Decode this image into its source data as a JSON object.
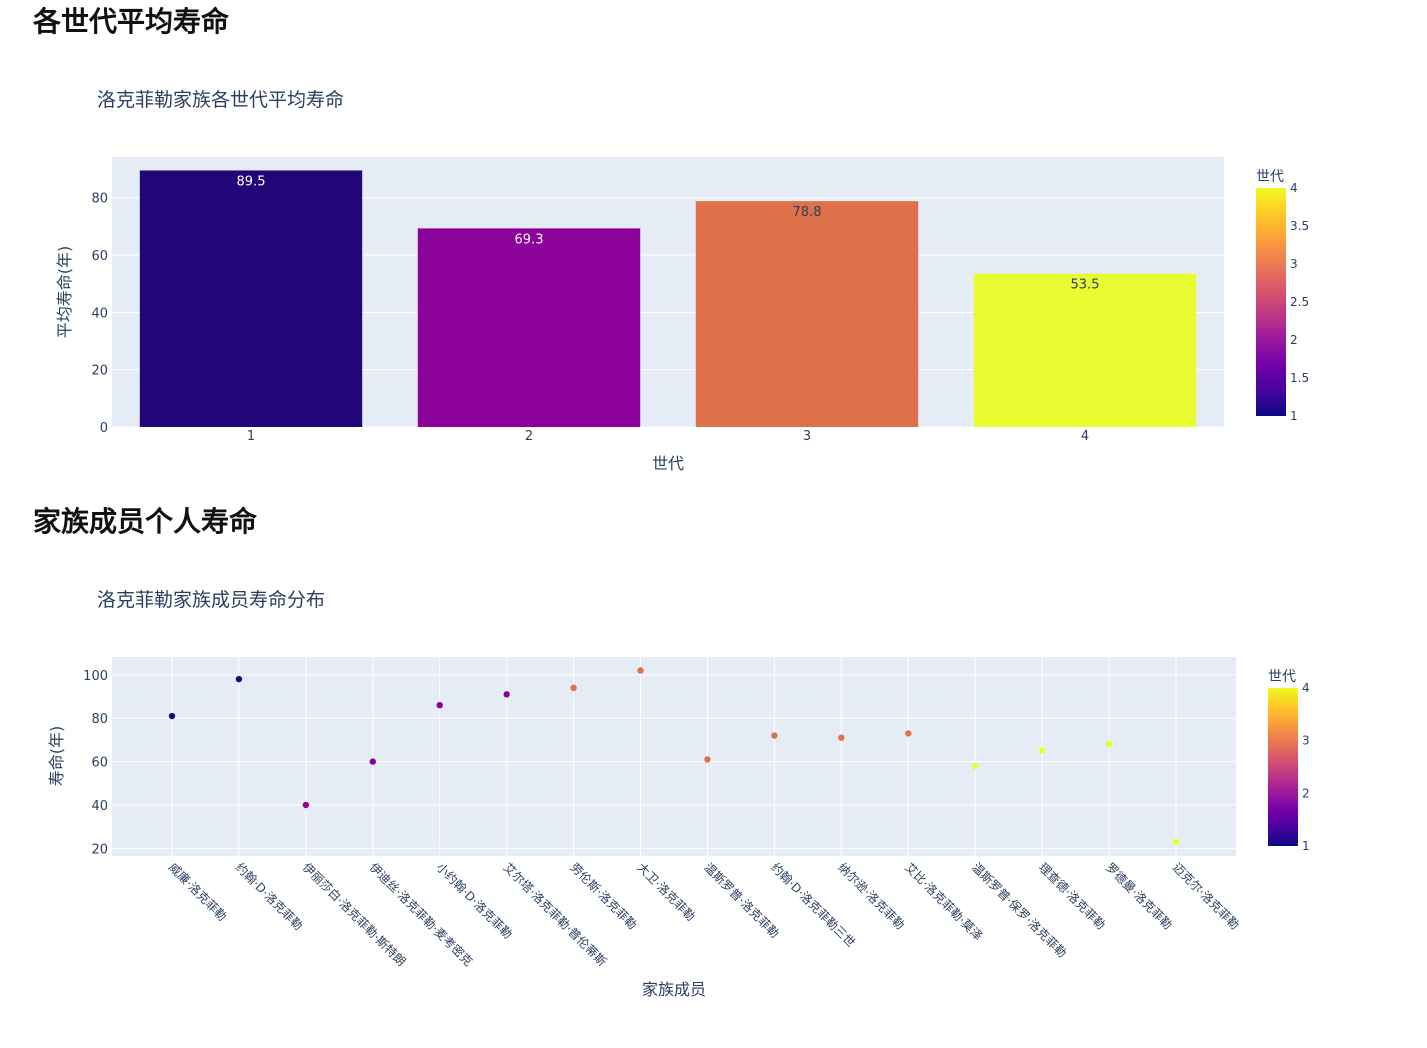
{
  "sections": [
    {
      "heading": "各世代平均寿命"
    },
    {
      "heading": "家族成员个人寿命"
    }
  ],
  "chart_data": [
    {
      "type": "bar",
      "title": "洛克菲勒家族各世代平均寿命",
      "xlabel": "世代",
      "ylabel": "平均寿命(年)",
      "categories": [
        "1",
        "2",
        "3",
        "4"
      ],
      "values": [
        89.5,
        69.3,
        78.8,
        53.5
      ],
      "data_labels": [
        "89.5",
        "69.3",
        "78.8",
        "53.5"
      ],
      "color_values": [
        1,
        2,
        3,
        4
      ],
      "bar_colors": [
        "#220577",
        "#8c0298",
        "#de7149",
        "#e8fc31"
      ],
      "label_colors": [
        "#ffffff",
        "#ffffff",
        "#2a3f5f",
        "#2a3f5f"
      ],
      "ylim": [
        0,
        94.2
      ],
      "yticks": [
        0,
        20,
        40,
        60,
        80
      ],
      "grid": true,
      "colorbar": {
        "title": "世代",
        "range": [
          1,
          4
        ],
        "ticks": [
          "1",
          "1.5",
          "2",
          "2.5",
          "3",
          "3.5",
          "4"
        ],
        "colorscale": [
          "#0d0887",
          "#46039f",
          "#7201a8",
          "#9c179e",
          "#bd3786",
          "#d8576b",
          "#ed7953",
          "#fb9f3a",
          "#fdca26",
          "#f0f921"
        ]
      }
    },
    {
      "type": "scatter",
      "title": "洛克菲勒家族成员寿命分布",
      "xlabel": "家族成员",
      "ylabel": "寿命(年)",
      "categories": [
        "威廉·洛克菲勒",
        "约翰·D·洛克菲勒",
        "伊丽莎白·洛克菲勒·斯特朗",
        "伊迪丝·洛克菲勒·麦考密克",
        "小约翰·D·洛克菲勒",
        "艾尔塔·洛克菲勒·普伦蒂斯",
        "劳伦斯·洛克菲勒",
        "大卫·洛克菲勒",
        "温斯罗普·洛克菲勒",
        "约翰·D·洛克菲勒三世",
        "纳尔逊·洛克菲勒",
        "艾比·洛克菲勒·莫泽",
        "温斯罗普·保罗·洛克菲勒",
        "理查德·洛克菲勒",
        "罗德曼·洛克菲勒",
        "迈克尔·洛克菲勒"
      ],
      "values": [
        81,
        98,
        40,
        60,
        86,
        91,
        94,
        102,
        61,
        72,
        71,
        73,
        58,
        65,
        68,
        23
      ],
      "generation": [
        1,
        1,
        2,
        2,
        2,
        2,
        3,
        3,
        3,
        3,
        3,
        3,
        4,
        4,
        4,
        4
      ],
      "point_colors": [
        "#220577",
        "#220577",
        "#8c0298",
        "#8c0298",
        "#8c0298",
        "#8c0298",
        "#de7149",
        "#de7149",
        "#de7149",
        "#de7149",
        "#de7149",
        "#de7149",
        "#e8fc31",
        "#e8fc31",
        "#e8fc31",
        "#e8fc31"
      ],
      "ylim": [
        16.5,
        108.2
      ],
      "yticks": [
        20,
        40,
        60,
        80,
        100
      ],
      "grid": true,
      "colorbar": {
        "title": "世代",
        "range": [
          1,
          4
        ],
        "ticks": [
          "1",
          "2",
          "3",
          "4"
        ],
        "colorscale": [
          "#0d0887",
          "#46039f",
          "#7201a8",
          "#9c179e",
          "#bd3786",
          "#d8576b",
          "#ed7953",
          "#fb9f3a",
          "#fdca26",
          "#f0f921"
        ]
      }
    }
  ]
}
